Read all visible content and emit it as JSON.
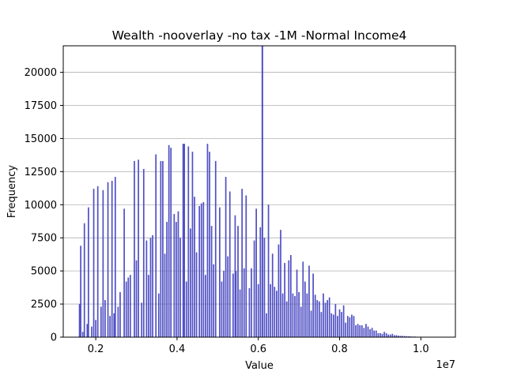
{
  "chart_data": {
    "type": "bar",
    "title": "Wealth -nooverlay -no tax -1M -Normal Income4",
    "xlabel": "Value",
    "ylabel": "Frequency",
    "x_offset_text": "1e7",
    "xlim": [
      1200000,
      10850000
    ],
    "ylim": [
      0,
      22000
    ],
    "x_ticks": [
      2000000,
      4000000,
      6000000,
      8000000,
      10000000
    ],
    "x_tick_labels": [
      "0.2",
      "0.4",
      "0.6",
      "0.8",
      "1.0"
    ],
    "y_ticks": [
      0,
      2500,
      5000,
      7500,
      10000,
      12500,
      15000,
      17500,
      20000
    ],
    "y_tick_labels": [
      "0",
      "2500",
      "5000",
      "7500",
      "10000",
      "12500",
      "15000",
      "17500",
      "20000"
    ],
    "grid": "y",
    "bar_color": "#5050c4",
    "bar_width": 33000,
    "spike": {
      "x": 6100000,
      "value": 22000
    },
    "bins": [
      [
        1600000,
        2500
      ],
      [
        1630000,
        6900
      ],
      [
        1680000,
        400
      ],
      [
        1720000,
        8600
      ],
      [
        1790000,
        1000
      ],
      [
        1820000,
        9800
      ],
      [
        1900000,
        800
      ],
      [
        1950000,
        11200
      ],
      [
        2000000,
        1300
      ],
      [
        2050000,
        11400
      ],
      [
        2130000,
        2300
      ],
      [
        2180000,
        11100
      ],
      [
        2230000,
        2800
      ],
      [
        2300000,
        11700
      ],
      [
        2350000,
        1600
      ],
      [
        2400000,
        11800
      ],
      [
        2450000,
        1800
      ],
      [
        2480000,
        12100
      ],
      [
        2550000,
        2300
      ],
      [
        2600000,
        3400
      ],
      [
        2700000,
        9700
      ],
      [
        2750000,
        4200
      ],
      [
        2800000,
        4500
      ],
      [
        2850000,
        4700
      ],
      [
        2950000,
        13300
      ],
      [
        3000000,
        5800
      ],
      [
        3050000,
        13400
      ],
      [
        3130000,
        2600
      ],
      [
        3180000,
        12700
      ],
      [
        3250000,
        7300
      ],
      [
        3300000,
        4700
      ],
      [
        3350000,
        7500
      ],
      [
        3400000,
        7700
      ],
      [
        3480000,
        13800
      ],
      [
        3550000,
        3300
      ],
      [
        3600000,
        13300
      ],
      [
        3650000,
        13300
      ],
      [
        3700000,
        6300
      ],
      [
        3750000,
        8700
      ],
      [
        3800000,
        14500
      ],
      [
        3850000,
        14300
      ],
      [
        3930000,
        9300
      ],
      [
        3980000,
        8700
      ],
      [
        4030000,
        9500
      ],
      [
        4080000,
        7500
      ],
      [
        4150000,
        14600
      ],
      [
        4180000,
        14600
      ],
      [
        4230000,
        4200
      ],
      [
        4280000,
        14400
      ],
      [
        4330000,
        8200
      ],
      [
        4380000,
        14000
      ],
      [
        4430000,
        10600
      ],
      [
        4480000,
        6400
      ],
      [
        4550000,
        9900
      ],
      [
        4600000,
        10100
      ],
      [
        4650000,
        10200
      ],
      [
        4700000,
        4700
      ],
      [
        4750000,
        14600
      ],
      [
        4800000,
        14000
      ],
      [
        4850000,
        8400
      ],
      [
        4900000,
        5500
      ],
      [
        4950000,
        13300
      ],
      [
        5050000,
        9800
      ],
      [
        5100000,
        4200
      ],
      [
        5150000,
        5000
      ],
      [
        5200000,
        12100
      ],
      [
        5250000,
        6100
      ],
      [
        5300000,
        11000
      ],
      [
        5380000,
        4800
      ],
      [
        5430000,
        9200
      ],
      [
        5450000,
        5000
      ],
      [
        5500000,
        8400
      ],
      [
        5550000,
        3600
      ],
      [
        5600000,
        11200
      ],
      [
        5650000,
        5200
      ],
      [
        5700000,
        10700
      ],
      [
        5780000,
        3700
      ],
      [
        5830000,
        5200
      ],
      [
        5900000,
        7300
      ],
      [
        5950000,
        9700
      ],
      [
        6000000,
        4000
      ],
      [
        6050000,
        8300
      ],
      [
        6150000,
        7500
      ],
      [
        6200000,
        1800
      ],
      [
        6250000,
        10000
      ],
      [
        6300000,
        4000
      ],
      [
        6350000,
        6300
      ],
      [
        6400000,
        3800
      ],
      [
        6450000,
        3500
      ],
      [
        6500000,
        7000
      ],
      [
        6550000,
        8100
      ],
      [
        6600000,
        3300
      ],
      [
        6650000,
        5600
      ],
      [
        6700000,
        2700
      ],
      [
        6750000,
        5800
      ],
      [
        6800000,
        6200
      ],
      [
        6850000,
        3300
      ],
      [
        6900000,
        3100
      ],
      [
        6950000,
        5100
      ],
      [
        7000000,
        3400
      ],
      [
        7050000,
        2300
      ],
      [
        7100000,
        5700
      ],
      [
        7150000,
        4200
      ],
      [
        7200000,
        3300
      ],
      [
        7250000,
        5400
      ],
      [
        7300000,
        2000
      ],
      [
        7350000,
        4800
      ],
      [
        7400000,
        3200
      ],
      [
        7450000,
        2800
      ],
      [
        7500000,
        2700
      ],
      [
        7550000,
        1900
      ],
      [
        7600000,
        3300
      ],
      [
        7650000,
        2600
      ],
      [
        7700000,
        2800
      ],
      [
        7750000,
        3000
      ],
      [
        7800000,
        1800
      ],
      [
        7850000,
        1700
      ],
      [
        7900000,
        2500
      ],
      [
        7950000,
        1600
      ],
      [
        8000000,
        2100
      ],
      [
        8050000,
        1900
      ],
      [
        8100000,
        2400
      ],
      [
        8150000,
        1100
      ],
      [
        8200000,
        1600
      ],
      [
        8250000,
        1500
      ],
      [
        8300000,
        1700
      ],
      [
        8350000,
        1600
      ],
      [
        8400000,
        900
      ],
      [
        8450000,
        1000
      ],
      [
        8500000,
        900
      ],
      [
        8550000,
        900
      ],
      [
        8600000,
        700
      ],
      [
        8650000,
        1000
      ],
      [
        8700000,
        800
      ],
      [
        8750000,
        600
      ],
      [
        8800000,
        700
      ],
      [
        8850000,
        500
      ],
      [
        8900000,
        500
      ],
      [
        8950000,
        300
      ],
      [
        9000000,
        300
      ],
      [
        9050000,
        250
      ],
      [
        9100000,
        400
      ],
      [
        9150000,
        300
      ],
      [
        9200000,
        200
      ],
      [
        9250000,
        200
      ],
      [
        9300000,
        250
      ],
      [
        9350000,
        150
      ],
      [
        9400000,
        150
      ],
      [
        9450000,
        120
      ],
      [
        9500000,
        100
      ],
      [
        9550000,
        100
      ],
      [
        9600000,
        80
      ],
      [
        9650000,
        80
      ],
      [
        9700000,
        60
      ],
      [
        9750000,
        60
      ],
      [
        9800000,
        40
      ],
      [
        9850000,
        50
      ],
      [
        9900000,
        30
      ],
      [
        9950000,
        30
      ],
      [
        10000000,
        20
      ],
      [
        10100000,
        20
      ],
      [
        10200000,
        15
      ],
      [
        10300000,
        10
      ],
      [
        10400000,
        10
      ]
    ]
  }
}
